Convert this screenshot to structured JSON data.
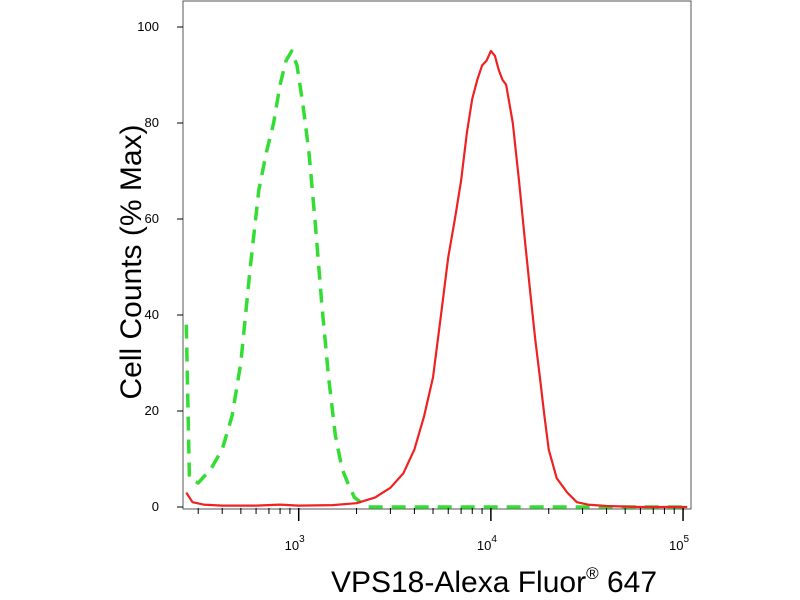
{
  "chart_data": {
    "type": "line",
    "title": "",
    "xlabel": "VPS18-Alexa Fluor",
    "xlabel_sup": "®",
    "xlabel_suffix": " 647",
    "ylabel": "Cell Counts (% Max)",
    "x_scale": "log",
    "xlim": [
      250,
      110000
    ],
    "ylim": [
      0,
      100
    ],
    "y_ticks": [
      0,
      20,
      40,
      60,
      80,
      100
    ],
    "x_major_ticks": [
      1000,
      10000,
      100000
    ],
    "x_tick_labels": [
      {
        "base": "10",
        "exp": "3"
      },
      {
        "base": "10",
        "exp": "4"
      },
      {
        "base": "10",
        "exp": "5"
      }
    ],
    "grid": false,
    "legend": "none",
    "series": [
      {
        "color": "#33dd33",
        "style": "dashed",
        "x": [
          260,
          270,
          300,
          350,
          400,
          450,
          500,
          560,
          620,
          680,
          740,
          800,
          860,
          920,
          980,
          1050,
          1130,
          1220,
          1320,
          1430,
          1550,
          1680,
          1800,
          1950,
          2100,
          2300,
          2600,
          3000,
          4000,
          6000,
          10000,
          20000,
          50000,
          105000
        ],
        "y": [
          38,
          6,
          5,
          8,
          12,
          19,
          30,
          50,
          66,
          74,
          80,
          88,
          93,
          95,
          92,
          84,
          74,
          59,
          42,
          27,
          15,
          8,
          5,
          2,
          1,
          0,
          0,
          0,
          0,
          0,
          0,
          0,
          0,
          0
        ]
      },
      {
        "color": "#ee2222",
        "style": "solid",
        "x": [
          260,
          280,
          320,
          400,
          600,
          800,
          1000,
          1500,
          2000,
          2500,
          3000,
          3500,
          4000,
          4500,
          5000,
          5500,
          6000,
          6500,
          7000,
          7500,
          8000,
          8500,
          9000,
          9500,
          10000,
          10500,
          11000,
          11500,
          12000,
          13000,
          14000,
          15000,
          16000,
          17000,
          18000,
          19000,
          20000,
          22000,
          25000,
          28000,
          32000,
          40000,
          60000,
          105000
        ],
        "y": [
          3,
          1,
          0.5,
          0.3,
          0.3,
          0.5,
          0.3,
          0.4,
          0.8,
          2,
          4,
          7,
          12,
          19,
          27,
          40,
          52,
          60,
          68,
          78,
          85,
          89,
          92,
          93,
          95,
          94,
          91,
          89,
          88,
          80,
          68,
          56,
          45,
          35,
          27,
          19,
          12,
          6,
          3,
          1,
          0.5,
          0.2,
          0,
          0
        ]
      }
    ]
  }
}
